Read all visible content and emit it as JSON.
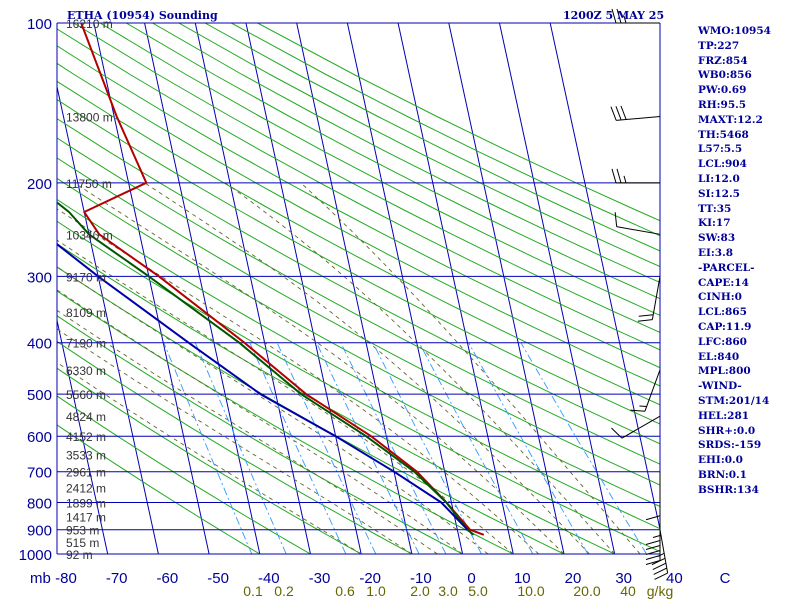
{
  "header": {
    "title": "ETHA (10954) Sounding",
    "valid": "1200Z  5 MAY 25"
  },
  "colors": {
    "grid": "#0000b3",
    "isotherm": "#0000b3",
    "dry_adiabat": "#22aa22",
    "moist_adiabat": "#666633",
    "mixing_ratio": "#3399ff",
    "temperature": "#b30000",
    "dewpoint": "#005500",
    "parcel": "#0000aa",
    "label": "#000099",
    "mixing_label": "#666600",
    "wind": "#000000"
  },
  "stats": [
    "WMO:10954",
    "TP:227",
    "FRZ:854",
    "WB0:856",
    "PW:0.69",
    "RH:95.5",
    "MAXT:12.2",
    "TH:5468",
    "L57:5.5",
    "LCL:904",
    "LI:12.0",
    "SI:12.5",
    "TT:35",
    "KI:17",
    "SW:83",
    "EI:3.8",
    "-PARCEL-",
    "CAPE:14",
    "CINH:0",
    "LCL:865",
    "CAP:11.9",
    "LFC:860",
    "EL:840",
    "MPL:800",
    "-WIND-",
    "STM:201/14",
    "HEL:281",
    "SHR+:0.0",
    "SRDS:-159",
    "EHI:0.0",
    "BRN:0.1",
    "BSHR:134"
  ],
  "chart_data": {
    "type": "skew-t",
    "xlabel": "",
    "ylabel": "mb",
    "x_unit": "°C",
    "y_scale": "log",
    "grid": true,
    "xlim": [
      -80,
      0
    ],
    "ylim": [
      1000,
      100
    ],
    "pressure_levels": [
      100,
      200,
      300,
      400,
      500,
      600,
      700,
      800,
      900,
      1000
    ],
    "pressure_labels": [
      "100",
      "200",
      "300",
      "400",
      "500",
      "600",
      "700",
      "800",
      "900",
      "1000"
    ],
    "temperature_ticks": [
      -70,
      -60,
      -50,
      -40,
      -30,
      -20,
      -10,
      0,
      10,
      20,
      30
    ],
    "temperature_tick_labels": [
      "-80",
      "-70",
      "-60",
      "-50",
      "-40",
      "-30",
      "-20",
      "-10",
      "0",
      "10",
      "20",
      "30",
      "40",
      "C"
    ],
    "height_labels": [
      {
        "p": 100,
        "text": "16210 m"
      },
      {
        "p": 150,
        "text": "13800 m"
      },
      {
        "p": 200,
        "text": "11750 m"
      },
      {
        "p": 250,
        "text": "10340 m"
      },
      {
        "p": 300,
        "text": "9170 m"
      },
      {
        "p": 350,
        "text": "8109 m"
      },
      {
        "p": 400,
        "text": "7190 m"
      },
      {
        "p": 450,
        "text": "6330 m"
      },
      {
        "p": 500,
        "text": "5560 m"
      },
      {
        "p": 550,
        "text": "4824 m"
      },
      {
        "p": 600,
        "text": "4152 m"
      },
      {
        "p": 650,
        "text": "3533 m"
      },
      {
        "p": 700,
        "text": "2961 m"
      },
      {
        "p": 750,
        "text": "2412 m"
      },
      {
        "p": 800,
        "text": "1899 m"
      },
      {
        "p": 850,
        "text": "1417 m"
      },
      {
        "p": 900,
        "text": "953 m"
      },
      {
        "p": 950,
        "text": "515 m"
      },
      {
        "p": 1000,
        "text": "92 m"
      }
    ],
    "mixing_ratio_labels": [
      "0.1",
      "0.2",
      "0.6",
      "1.0",
      "2.0",
      "3.0",
      "5.0",
      "10.0",
      "20.0",
      "40",
      "g/kg"
    ],
    "mixing_ratio_values": [
      0.1,
      0.2,
      0.6,
      1.0,
      2.0,
      3.0,
      5.0,
      10.0,
      20.0,
      40
    ],
    "series": [
      {
        "key": "temperature",
        "points": [
          [
            100,
            -52.5
          ],
          [
            150,
            -49.5
          ],
          [
            200,
            -46.5
          ],
          [
            227,
            -60.0
          ],
          [
            250,
            -58.0
          ],
          [
            300,
            -48.0
          ],
          [
            400,
            -34.0
          ],
          [
            500,
            -24.0
          ],
          [
            600,
            -13.0
          ],
          [
            700,
            -5.5
          ],
          [
            800,
            -1.0
          ],
          [
            900,
            2.5
          ],
          [
            920,
            5.0
          ]
        ]
      },
      {
        "key": "dewpoint",
        "points": [
          [
            200,
            -69.0
          ],
          [
            227,
            -63.0
          ],
          [
            250,
            -60.0
          ],
          [
            300,
            -50.0
          ],
          [
            400,
            -35.0
          ],
          [
            500,
            -25.0
          ],
          [
            600,
            -14.0
          ],
          [
            700,
            -6.0
          ],
          [
            800,
            -1.0
          ],
          [
            900,
            2.0
          ],
          [
            920,
            3.0
          ]
        ]
      },
      {
        "key": "parcel",
        "points": [
          [
            220,
            -75.0
          ],
          [
            300,
            -60.0
          ],
          [
            400,
            -45.0
          ],
          [
            500,
            -33.0
          ],
          [
            600,
            -20.0
          ],
          [
            700,
            -10.0
          ],
          [
            800,
            -2.0
          ],
          [
            900,
            2.0
          ]
        ]
      }
    ],
    "winds": [
      {
        "p": 100,
        "dir": 270,
        "spd": 25
      },
      {
        "p": 150,
        "dir": 265,
        "spd": 30
      },
      {
        "p": 200,
        "dir": 270,
        "spd": 25
      },
      {
        "p": 250,
        "dir": 280,
        "spd": 10
      },
      {
        "p": 300,
        "dir": 190,
        "spd": 20
      },
      {
        "p": 450,
        "dir": 200,
        "spd": 15
      },
      {
        "p": 550,
        "dir": 240,
        "spd": 10
      },
      {
        "p": 700,
        "dir": 180,
        "spd": 10
      },
      {
        "p": 850,
        "dir": 180,
        "spd": 55
      },
      {
        "p": 900,
        "dir": 170,
        "spd": 45
      }
    ]
  }
}
